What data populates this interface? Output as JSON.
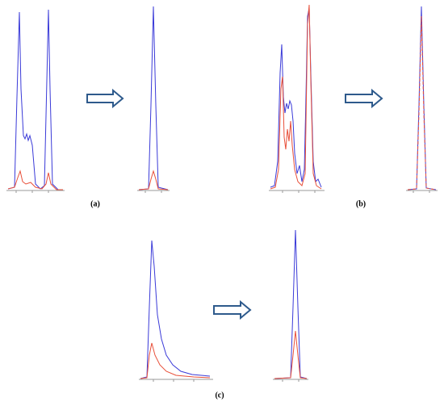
{
  "panels": {
    "a": "(a)",
    "b": "(b)",
    "c": "(c)"
  }
}
